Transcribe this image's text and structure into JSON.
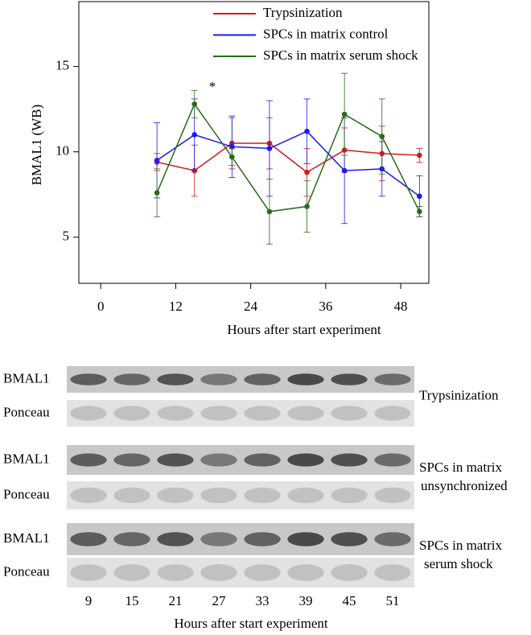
{
  "chart_data": {
    "type": "line",
    "x_label": "Hours after start experiment",
    "y_label": "BMAL1 (WB)",
    "x": [
      9,
      15,
      21,
      27,
      33,
      39,
      45,
      51
    ],
    "xlim": [
      -3.5,
      52.5
    ],
    "xticks": [
      0,
      12,
      24,
      36,
      48
    ],
    "ylim": [
      2.3,
      18.8
    ],
    "yticks": [
      5,
      10,
      15
    ],
    "legend": "top",
    "annotation": "*",
    "series": [
      {
        "name": "Trypsinization",
        "color": "#d01c1c",
        "values": [
          9.4,
          8.9,
          10.5,
          10.5,
          8.8,
          10.1,
          9.9,
          9.8
        ],
        "errors": [
          0.5,
          1.5,
          1.5,
          1.5,
          1.4,
          1.3,
          1.6,
          0.4
        ]
      },
      {
        "name": "SPCs in matrix control",
        "color": "#1a1aee",
        "values": [
          9.5,
          11.0,
          10.3,
          10.2,
          11.2,
          8.9,
          9.0,
          7.4
        ],
        "errors": [
          2.2,
          2.1,
          1.8,
          2.8,
          1.9,
          3.1,
          1.6,
          1.2
        ]
      },
      {
        "name": "SPCs in matrix serum shock",
        "color": "#2a6a1a",
        "values": [
          7.6,
          12.8,
          9.7,
          6.5,
          6.8,
          12.2,
          10.9,
          6.5
        ],
        "errors": [
          1.4,
          0.8,
          0.5,
          1.9,
          1.5,
          2.4,
          2.2,
          0.3
        ]
      }
    ]
  },
  "blots": {
    "groups": [
      {
        "label": "Trypsinization",
        "rows": [
          "BMAL1",
          "Ponceau"
        ]
      },
      {
        "label": "SPCs in matrix unsynchronized",
        "rows": [
          "BMAL1",
          "Ponceau"
        ]
      },
      {
        "label": "SPCs in matrix serum shock",
        "rows": [
          "BMAL1",
          "Ponceau"
        ]
      }
    ],
    "lanes": [
      "9",
      "15",
      "21",
      "27",
      "33",
      "39",
      "45",
      "51"
    ],
    "x_label": "Hours after start experiment"
  }
}
